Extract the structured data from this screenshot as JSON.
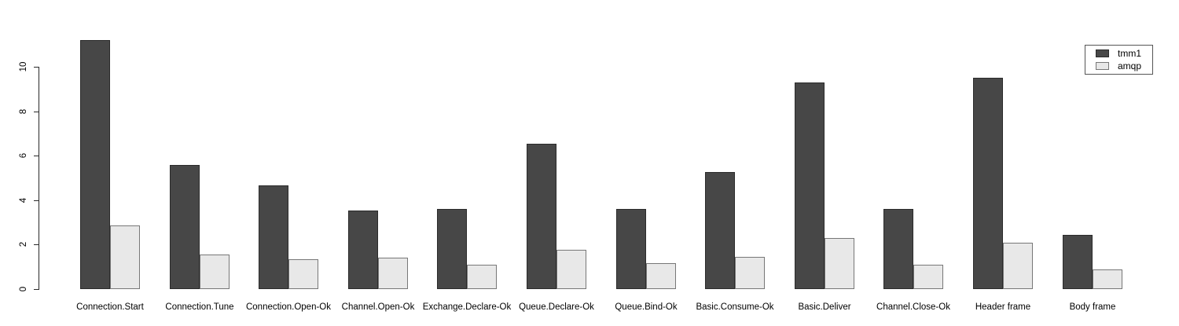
{
  "chart_data": {
    "type": "bar",
    "title": "",
    "xlabel": "",
    "ylabel": "",
    "grid": false,
    "legend_position": "top-right",
    "ylim": [
      0,
      11.3
    ],
    "yticks": [
      0,
      2,
      4,
      6,
      8,
      10
    ],
    "categories": [
      "Connection.Start",
      "Connection.Tune",
      "Connection.Open-Ok",
      "Channel.Open-Ok",
      "Exchange.Declare-Ok",
      "Queue.Declare-Ok",
      "Queue.Bind-Ok",
      "Basic.Consume-Ok",
      "Basic.Deliver",
      "Channel.Close-Ok",
      "Header frame",
      "Body frame"
    ],
    "series": [
      {
        "name": "tmm1",
        "color": "#474747",
        "border_color": "#2b2b2b",
        "values": [
          11.2,
          5.6,
          4.65,
          3.55,
          3.6,
          6.55,
          3.6,
          5.25,
          9.3,
          3.6,
          9.5,
          2.45
        ]
      },
      {
        "name": "amqp",
        "color": "#e8e8e8",
        "border_color": "#777777",
        "values": [
          2.85,
          1.55,
          1.35,
          1.4,
          1.1,
          1.75,
          1.15,
          1.45,
          2.3,
          1.1,
          2.1,
          0.9
        ]
      }
    ]
  }
}
